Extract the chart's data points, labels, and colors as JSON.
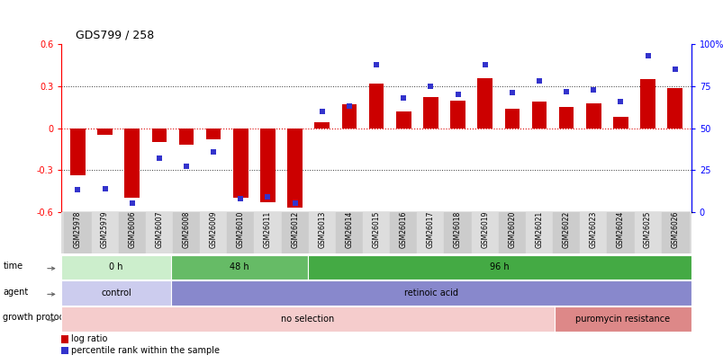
{
  "title": "GDS799 / 258",
  "samples": [
    "GSM25978",
    "GSM25979",
    "GSM26006",
    "GSM26007",
    "GSM26008",
    "GSM26009",
    "GSM26010",
    "GSM26011",
    "GSM26012",
    "GSM26013",
    "GSM26014",
    "GSM26015",
    "GSM26016",
    "GSM26017",
    "GSM26018",
    "GSM26019",
    "GSM26020",
    "GSM26021",
    "GSM26022",
    "GSM26023",
    "GSM26024",
    "GSM26025",
    "GSM26026"
  ],
  "log_ratio": [
    -0.34,
    -0.05,
    -0.5,
    -0.1,
    -0.12,
    -0.08,
    -0.5,
    -0.53,
    -0.57,
    0.04,
    0.17,
    0.32,
    0.12,
    0.22,
    0.2,
    0.36,
    0.14,
    0.19,
    0.15,
    0.18,
    0.08,
    0.35,
    0.29
  ],
  "percentile": [
    13,
    14,
    5,
    32,
    27,
    36,
    8,
    9,
    5,
    60,
    63,
    88,
    68,
    75,
    70,
    88,
    71,
    78,
    72,
    73,
    66,
    93,
    85
  ],
  "ylim_left": [
    -0.6,
    0.6
  ],
  "ylim_right": [
    0,
    100
  ],
  "yticks_left": [
    -0.6,
    -0.3,
    0.0,
    0.3,
    0.6
  ],
  "yticks_right": [
    0,
    25,
    50,
    75,
    100
  ],
  "bar_color": "#cc0000",
  "dot_color": "#3333cc",
  "zero_line_color": "#dd0000",
  "dotted_line_color": "#333333",
  "time_groups": [
    {
      "label": "0 h",
      "start": 0,
      "end": 4,
      "color": "#cceecc"
    },
    {
      "label": "48 h",
      "start": 4,
      "end": 9,
      "color": "#66bb66"
    },
    {
      "label": "96 h",
      "start": 9,
      "end": 23,
      "color": "#44aa44"
    }
  ],
  "agent_groups": [
    {
      "label": "control",
      "start": 0,
      "end": 4,
      "color": "#ccccee"
    },
    {
      "label": "retinoic acid",
      "start": 4,
      "end": 23,
      "color": "#8888cc"
    }
  ],
  "growth_groups": [
    {
      "label": "no selection",
      "start": 0,
      "end": 18,
      "color": "#f5cccc"
    },
    {
      "label": "puromycin resistance",
      "start": 18,
      "end": 23,
      "color": "#dd8888"
    }
  ],
  "legend_log_ratio": "log ratio",
  "legend_percentile": "percentile rank within the sample",
  "bg_color": "#ffffff"
}
